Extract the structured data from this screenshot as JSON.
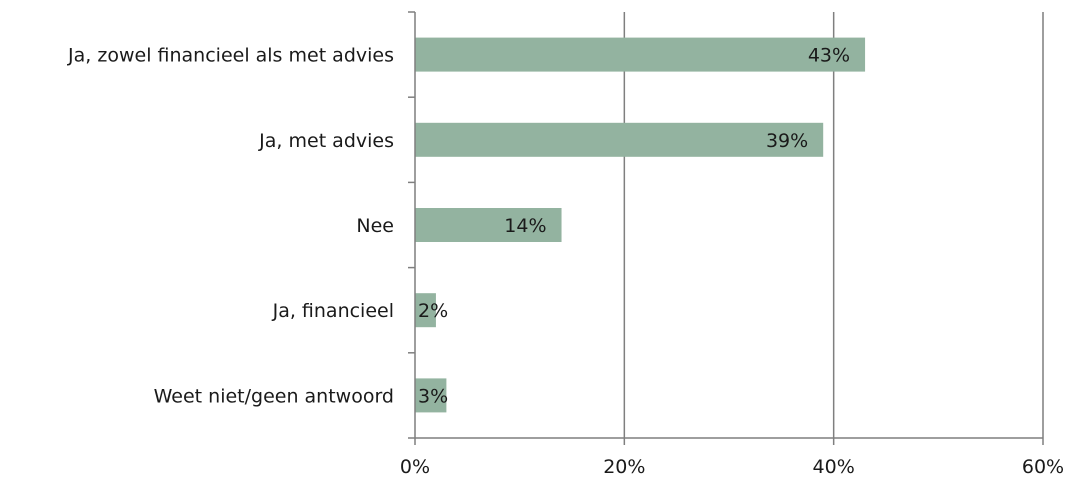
{
  "chart_data": {
    "type": "bar",
    "orientation": "horizontal",
    "categories": [
      "Ja, zowel financieel als met advies",
      "Ja, met advies",
      "Nee",
      "Ja, financieel",
      "Weet niet/geen antwoord"
    ],
    "values": [
      43,
      39,
      14,
      2,
      3
    ],
    "data_labels": [
      "43%",
      "39%",
      "14%",
      "2%",
      "3%"
    ],
    "xlim": [
      0,
      60
    ],
    "x_ticks": [
      0,
      20,
      40,
      60
    ],
    "x_tick_labels": [
      "0%",
      "20%",
      "40%",
      "60%"
    ],
    "grid": "vertical",
    "legend": "none",
    "bar_color": "#93b3a0",
    "grid_color": "#7f7f7f"
  }
}
